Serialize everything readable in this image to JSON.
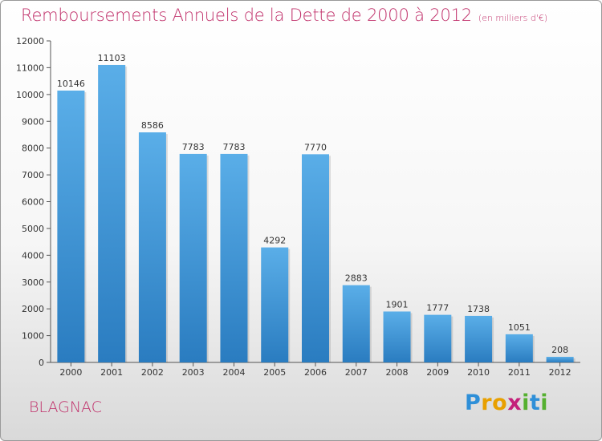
{
  "header": {
    "title": "Remboursements Annuels de la Dette de 2000 à 2012",
    "unit": "(en milliers d'€)"
  },
  "footer": {
    "city": "BLAGNAC",
    "logo_letters": [
      "P",
      "r",
      "o",
      "x",
      "i",
      "t",
      "i"
    ],
    "logo_colors": [
      "#2e8fd8",
      "#e8a000",
      "#e8a000",
      "#c4207a",
      "#55b030",
      "#2e8fd8",
      "#55b030"
    ]
  },
  "chart_data": {
    "type": "bar",
    "title": "Remboursements Annuels de la Dette de 2000 à 2012",
    "xlabel": "",
    "ylabel": "",
    "categories": [
      "2000",
      "2001",
      "2002",
      "2003",
      "2004",
      "2005",
      "2006",
      "2007",
      "2008",
      "2009",
      "2010",
      "2011",
      "2012"
    ],
    "values": [
      10146,
      11103,
      8586,
      7783,
      7783,
      4292,
      7770,
      2883,
      1901,
      1777,
      1738,
      1051,
      208
    ],
    "ylim": [
      0,
      12000
    ],
    "yticks": [
      0,
      1000,
      2000,
      3000,
      4000,
      5000,
      6000,
      7000,
      8000,
      9000,
      10000,
      11000,
      12000
    ],
    "grid": false,
    "bar_color_top": "#5aaee8",
    "bar_color_bottom": "#2a7cc0"
  }
}
